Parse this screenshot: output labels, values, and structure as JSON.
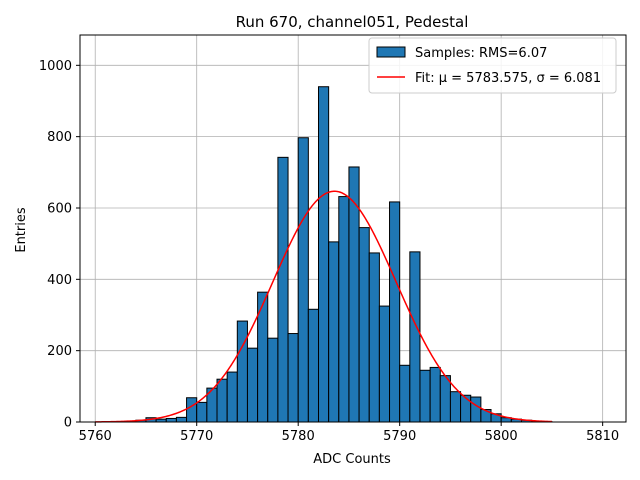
{
  "chart_data": {
    "type": "bar",
    "title": "Run 670, channel051, Pedestal",
    "xlabel": "ADC Counts",
    "ylabel": "Entries",
    "xlim": [
      5758.5,
      5812.3
    ],
    "ylim": [
      0,
      1085
    ],
    "xticks": [
      5760,
      5770,
      5780,
      5790,
      5800,
      5810
    ],
    "yticks": [
      0,
      200,
      400,
      600,
      800,
      1000
    ],
    "grid": true,
    "legend_position": "top-right",
    "bin_width": 1,
    "bar_color": "#1f77b4",
    "fit_color": "#ff0000",
    "series": [
      {
        "name": "Samples: RMS=6.07",
        "type": "histogram",
        "bin_edges_start": 5760,
        "counts": [
          0,
          0,
          1,
          2,
          5,
          12,
          8,
          10,
          13,
          68,
          55,
          95,
          120,
          140,
          283,
          207,
          364,
          235,
          742,
          248,
          797,
          316,
          940,
          505,
          632,
          715,
          545,
          474,
          325,
          617,
          159,
          477,
          145,
          153,
          130,
          85,
          75,
          70,
          35,
          23,
          12,
          8,
          5,
          2,
          1
        ]
      },
      {
        "name": "Fit: μ = 5783.575, σ = 6.081",
        "type": "line",
        "mu": 5783.575,
        "sigma": 6.081,
        "amplitude": 647,
        "x_range": [
          5760,
          5805
        ]
      }
    ]
  }
}
